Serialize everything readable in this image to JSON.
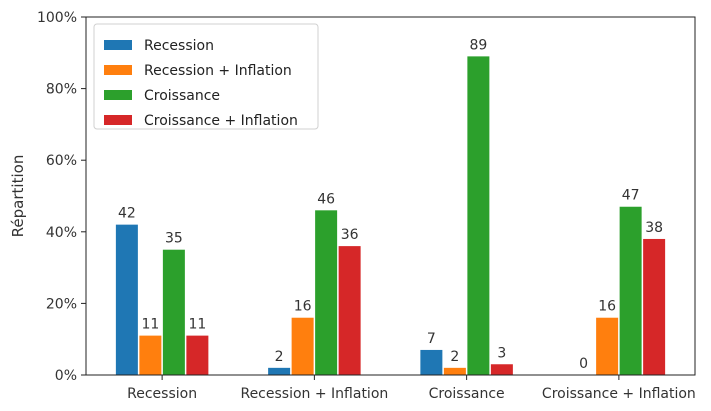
{
  "chart_data": {
    "type": "bar",
    "categories": [
      "Recession",
      "Recession + Inflation",
      "Croissance",
      "Croissance + Inflation"
    ],
    "series": [
      {
        "name": "Recession",
        "color": "#1f77b4",
        "values": [
          42,
          2,
          7,
          0
        ]
      },
      {
        "name": "Recession + Inflation",
        "color": "#ff7f0e",
        "values": [
          11,
          16,
          2,
          16
        ]
      },
      {
        "name": "Croissance",
        "color": "#2ca02c",
        "values": [
          35,
          46,
          89,
          47
        ]
      },
      {
        "name": "Croissance + Inflation",
        "color": "#d62728",
        "values": [
          11,
          36,
          3,
          38
        ]
      }
    ],
    "title": "",
    "xlabel": "",
    "ylabel": "Répartition",
    "ylim": [
      0,
      100
    ],
    "yticks": [
      "0%",
      "20%",
      "40%",
      "60%",
      "80%",
      "100%"
    ],
    "grid": false,
    "legend_position": "top-left"
  }
}
